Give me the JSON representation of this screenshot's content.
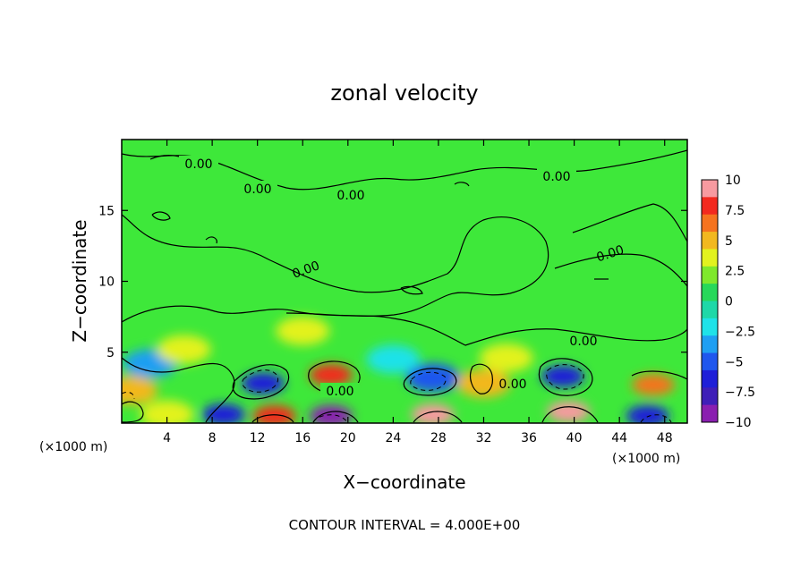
{
  "chart_data": {
    "type": "heatmap",
    "title": "zonal velocity",
    "xlabel": "X−coordinate",
    "ylabel": "Z−coordinate",
    "x_unit": "(×1000 m)",
    "z_unit": "(×1000 m)",
    "xlim": [
      0,
      50
    ],
    "ylim": [
      0,
      20
    ],
    "x_ticks": [
      4,
      8,
      12,
      16,
      20,
      24,
      28,
      32,
      36,
      40,
      44,
      48
    ],
    "y_ticks": [
      5,
      10,
      15
    ],
    "x_tick_labels": [
      "4",
      "8",
      "12",
      "16",
      "20",
      "24",
      "28",
      "32",
      "36",
      "40",
      "44",
      "48"
    ],
    "y_tick_labels": [
      "5",
      "10",
      "15"
    ],
    "colorbar": {
      "range": [
        -10,
        10
      ],
      "ticks": [
        10,
        7.5,
        5,
        2.5,
        0,
        -2.5,
        -5,
        -7.5,
        -10
      ],
      "tick_labels": [
        "10",
        "7.5",
        "5",
        "2.5",
        "0",
        "−2.5",
        "−5",
        "−7.5",
        "−10"
      ],
      "colors": [
        "#f79aa0",
        "#f2291f",
        "#f5731f",
        "#f2b81f",
        "#e2f21f",
        "#7fe82c",
        "#27d85a",
        "#1fd8a8",
        "#1fe2e8",
        "#1f9ff2",
        "#1f57ee",
        "#1f1fd8",
        "#3f1fb8",
        "#8a1fb0"
      ]
    },
    "contour_labels": [
      "0.00",
      "0.00",
      "0.00",
      "0.00",
      "0.00",
      "0.00",
      "0.00",
      "0.00",
      "0.00"
    ],
    "anomalies": [
      {
        "x": 12.5,
        "z": 2.8,
        "value": -6
      },
      {
        "x": 18.5,
        "z": 3.4,
        "value": 8
      },
      {
        "x": 27.5,
        "z": 3.2,
        "value": -5
      },
      {
        "x": 32,
        "z": 2.8,
        "value": 5
      },
      {
        "x": 39,
        "z": 3.3,
        "value": -6
      },
      {
        "x": 47,
        "z": 2.7,
        "value": 7
      },
      {
        "x": 0.8,
        "z": 2.3,
        "value": 5
      },
      {
        "x": 13.5,
        "z": 0.5,
        "value": 8
      },
      {
        "x": 18.5,
        "z": 0.5,
        "value": -9
      },
      {
        "x": 27.5,
        "z": 0.6,
        "value": 9
      },
      {
        "x": 39.5,
        "z": 0.8,
        "value": 9
      },
      {
        "x": 9,
        "z": 0.6,
        "value": -6
      },
      {
        "x": 46.5,
        "z": 0.5,
        "value": -7
      },
      {
        "x": 4,
        "z": 0.6,
        "value": 4
      },
      {
        "x": 2.5,
        "z": 4.2,
        "value": -3
      },
      {
        "x": 5.5,
        "z": 5.2,
        "value": 4
      },
      {
        "x": 16,
        "z": 6.5,
        "value": 4
      },
      {
        "x": 24,
        "z": 4.5,
        "value": -2.5
      },
      {
        "x": 34,
        "z": 4.6,
        "value": 4
      }
    ]
  },
  "footer": {
    "contour_interval": "CONTOUR INTERVAL = 4.000E+00"
  }
}
